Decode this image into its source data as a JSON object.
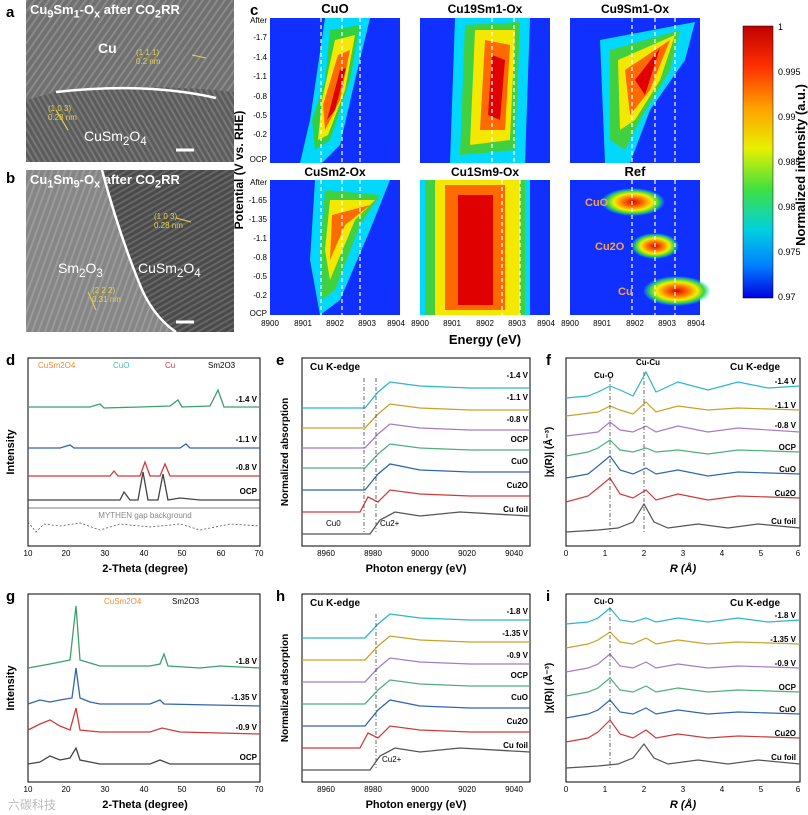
{
  "panels": {
    "a": {
      "letter": "a",
      "title_prefix": "Cu",
      "title_s1": "9",
      "title_mid": "Sm",
      "title_s2": "1",
      "title_suffix": "-O",
      "title_s3": "x",
      "title_tail": " after CO",
      "title_s4": "2",
      "title_end": "RR",
      "label_cu": "Cu",
      "label_cusm_pre": "CuSm",
      "label_cusm_s1": "2",
      "label_cusm_mid": "O",
      "label_cusm_s2": "4",
      "lattice1": "(1 1 1)",
      "lattice1b": "0.2 nm",
      "lattice2": "(1 0 3)",
      "lattice2b": "0.28 nm"
    },
    "b": {
      "letter": "b",
      "title_prefix": "Cu",
      "title_s1": "1",
      "title_mid": "Sm",
      "title_s2": "9",
      "title_suffix": "-O",
      "title_s3": "x",
      "title_tail": " after CO",
      "title_s4": "2",
      "title_end": "RR",
      "label_sm_pre": "Sm",
      "label_sm_s1": "2",
      "label_sm_mid": "O",
      "label_sm_s2": "3",
      "label_cusm_pre": "CuSm",
      "label_cusm_s1": "2",
      "label_cusm_mid": "O",
      "label_cusm_s2": "4",
      "lattice1": "(1 0 3)",
      "lattice1b": "0.28 nm",
      "lattice2": "(2 2 2)",
      "lattice2b": "0.31 nm"
    },
    "c": {
      "letter": "c",
      "ylabel": "Potential (V vs. RHE)",
      "xlabel": "Energy (eV)",
      "colorbar_label": "Normalized intensity (a.u.)",
      "colorbar_ticks": [
        "1",
        "0.995",
        "0.99",
        "0.985",
        "0.98",
        "0.975",
        "0.97"
      ],
      "yticks": [
        "After",
        "-1.7",
        "-1.4",
        "-1.1",
        "-0.8",
        "-0.5",
        "-0.2",
        "OCP"
      ],
      "yticks2": [
        "After",
        "-1.65",
        "-1.35",
        "-1.1",
        "-0.8",
        "-0.5",
        "-0.2",
        "OCP"
      ],
      "xticks": [
        "8900",
        "8901",
        "8902",
        "8903",
        "8904"
      ],
      "maps": [
        "CuO",
        "Cu19Sm1-Ox",
        "Cu9Sm1-Ox",
        "CuSm2-Ox",
        "Cu1Sm9-Ox",
        "Ref"
      ],
      "ref_labels": [
        "CuO",
        "Cu2O",
        "Cu"
      ]
    },
    "d": {
      "letter": "d",
      "ylabel": "Intensity",
      "xlabel": "2-Theta (degree)",
      "xticks": [
        "10",
        "20",
        "30",
        "40",
        "50",
        "60",
        "70"
      ],
      "legend": [
        "CuSm2O4",
        "CuO",
        "Cu",
        "Sm2O3"
      ],
      "traces": [
        "-1.4 V",
        "-1.1 V",
        "-0.8 V",
        "OCP"
      ],
      "gap": "MYTHEN gap background"
    },
    "e": {
      "letter": "e",
      "title": "Cu K-edge",
      "ylabel": "Normalized absorption",
      "xlabel": "Photon energy (eV)",
      "xticks": [
        "8960",
        "8980",
        "9000",
        "9020",
        "9040"
      ],
      "traces": [
        "-1.4 V",
        "-1.1 V",
        "-0.8 V",
        "OCP",
        "CuO",
        "Cu2O",
        "Cu foil"
      ],
      "arrow1": "Cu0",
      "arrow2": "Cu2+"
    },
    "f": {
      "letter": "f",
      "title": "Cu K-edge",
      "ylabel": "|χ(R)| (Å⁻³)",
      "xlabel": "R (Å)",
      "xticks": [
        "0",
        "1",
        "2",
        "3",
        "4",
        "5",
        "6"
      ],
      "traces": [
        "-1.4 V",
        "-1.1 V",
        "-0.8 V",
        "OCP",
        "CuO",
        "Cu2O",
        "Cu foil"
      ],
      "peak1": "Cu-O",
      "peak2": "Cu-Cu"
    },
    "g": {
      "letter": "g",
      "ylabel": "Intensity",
      "xlabel": "2-Theta (degree)",
      "xticks": [
        "10",
        "20",
        "30",
        "40",
        "50",
        "60",
        "70"
      ],
      "legend": [
        "CuSm2O4",
        "Sm2O3"
      ],
      "traces": [
        "-1.8 V",
        "-1.35 V",
        "-0.9 V",
        "OCP"
      ]
    },
    "h": {
      "letter": "h",
      "title": "Cu K-edge",
      "ylabel": "Normalized adsorption",
      "xlabel": "Photon energy (eV)",
      "xticks": [
        "8960",
        "8980",
        "9000",
        "9020",
        "9040"
      ],
      "traces": [
        "-1.8 V",
        "-1.35 V",
        "-0.9 V",
        "OCP",
        "CuO",
        "Cu2O",
        "Cu foil"
      ],
      "arrow2": "Cu2+"
    },
    "i": {
      "letter": "i",
      "title": "Cu K-edge",
      "ylabel": "|χ(R)| (Å⁻³)",
      "xlabel": "R (Å)",
      "xticks": [
        "0",
        "1",
        "2",
        "3",
        "4",
        "5",
        "6"
      ],
      "traces": [
        "-1.8 V",
        "-1.35 V",
        "-0.9 V",
        "OCP",
        "CuO",
        "Cu2O",
        "Cu foil"
      ],
      "peak1": "Cu-O"
    }
  },
  "colors": {
    "cyan": "#2ab7c9",
    "gold": "#c9a227",
    "purple": "#a77ac9",
    "green": "#4daf7c",
    "blue": "#2f66b0",
    "red": "#d23a3a",
    "gray": "#555555",
    "orange": "#f08a2b",
    "teal": "#3cc3b8"
  },
  "watermark": "六碳科技"
}
